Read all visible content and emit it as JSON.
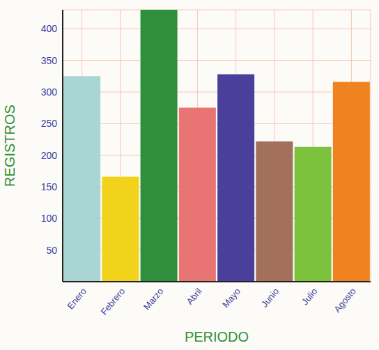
{
  "chart_data": {
    "type": "bar",
    "x_label": "PERIODO",
    "y_label": "REGISTROS",
    "categories": [
      "Enero",
      "Febrero",
      "Marzo",
      "Abril",
      "Mayo",
      "Junio",
      "Julio",
      "Agosto"
    ],
    "values": [
      325,
      166,
      430,
      275,
      328,
      222,
      213,
      316
    ],
    "colors": [
      "#a9d6d4",
      "#f2d31c",
      "#2f8f3a",
      "#e87474",
      "#4b3f9c",
      "#a3705b",
      "#7cc23c",
      "#f0821f"
    ],
    "ylim": [
      0,
      430
    ],
    "yticks": [
      50,
      100,
      150,
      200,
      250,
      300,
      350,
      400
    ],
    "grid": true
  }
}
